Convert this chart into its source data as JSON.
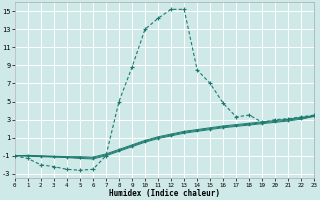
{
  "xlabel": "Humidex (Indice chaleur)",
  "xlim": [
    0,
    23
  ],
  "ylim": [
    -3.5,
    16
  ],
  "xticks": [
    0,
    1,
    2,
    3,
    4,
    5,
    6,
    7,
    8,
    9,
    10,
    11,
    12,
    13,
    14,
    15,
    16,
    17,
    18,
    19,
    20,
    21,
    22,
    23
  ],
  "yticks": [
    -3,
    -1,
    1,
    3,
    5,
    7,
    9,
    11,
    13,
    15
  ],
  "bg_color": "#cfe8e8",
  "grid_color": "#ffffff",
  "line_color": "#1a7a6e",
  "main_line": {
    "x": [
      0,
      1,
      2,
      3,
      4,
      5,
      6,
      7,
      8,
      9,
      10,
      11,
      12,
      13,
      14,
      15,
      16,
      17,
      18,
      19,
      20,
      21,
      22,
      23
    ],
    "y": [
      -1.0,
      -1.3,
      -2.0,
      -2.2,
      -2.5,
      -2.6,
      -2.5,
      -1.0,
      5.0,
      8.8,
      13.0,
      14.2,
      15.2,
      15.2,
      8.5,
      7.0,
      4.8,
      3.3,
      3.5,
      2.7,
      3.0,
      3.1,
      3.3,
      3.5
    ]
  },
  "flat_lines": [
    {
      "x": [
        0,
        1,
        2,
        3,
        4,
        5,
        6,
        7,
        8,
        9,
        10,
        11,
        12,
        13,
        14,
        15,
        16,
        17,
        18,
        19,
        20,
        21,
        22,
        23
      ],
      "y": [
        -1.0,
        -1.05,
        -1.1,
        -1.15,
        -1.2,
        -1.3,
        -1.35,
        -1.0,
        -0.5,
        0.0,
        0.5,
        0.9,
        1.2,
        1.5,
        1.7,
        1.9,
        2.1,
        2.25,
        2.4,
        2.55,
        2.7,
        2.85,
        3.05,
        3.35
      ]
    },
    {
      "x": [
        0,
        1,
        2,
        3,
        4,
        5,
        6,
        7,
        8,
        9,
        10,
        11,
        12,
        13,
        14,
        15,
        16,
        17,
        18,
        19,
        20,
        21,
        22,
        23
      ],
      "y": [
        -1.0,
        -1.0,
        -1.05,
        -1.1,
        -1.15,
        -1.2,
        -1.25,
        -0.9,
        -0.4,
        0.1,
        0.6,
        1.0,
        1.3,
        1.6,
        1.8,
        2.0,
        2.2,
        2.35,
        2.5,
        2.65,
        2.8,
        2.95,
        3.15,
        3.4
      ]
    },
    {
      "x": [
        0,
        1,
        2,
        3,
        4,
        5,
        6,
        7,
        8,
        9,
        10,
        11,
        12,
        13,
        14,
        15,
        16,
        17,
        18,
        19,
        20,
        21,
        22,
        23
      ],
      "y": [
        -1.0,
        -0.95,
        -1.0,
        -1.05,
        -1.1,
        -1.1,
        -1.15,
        -0.8,
        -0.3,
        0.2,
        0.7,
        1.1,
        1.4,
        1.7,
        1.9,
        2.1,
        2.3,
        2.45,
        2.6,
        2.75,
        2.9,
        3.05,
        3.25,
        3.45
      ]
    }
  ]
}
